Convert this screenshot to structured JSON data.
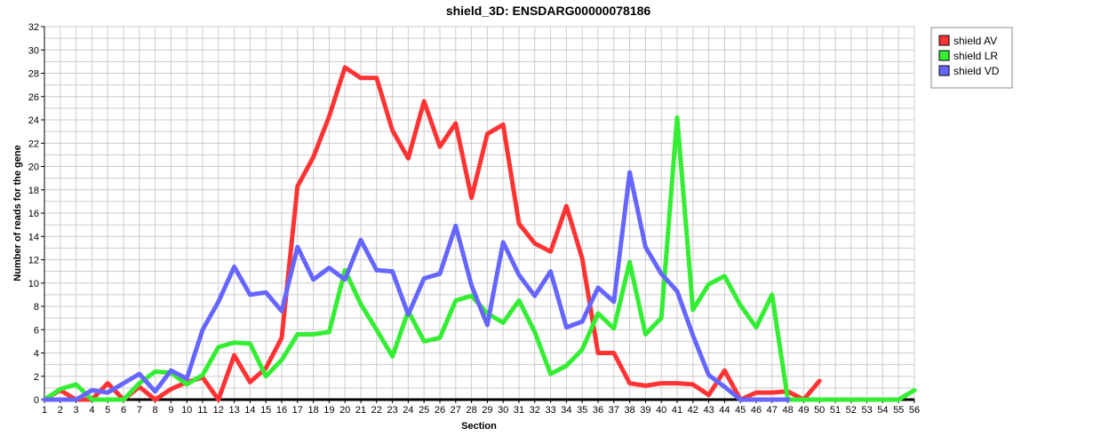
{
  "chart_data": {
    "type": "line",
    "title": "shield_3D: ENSDARG00000078186",
    "xlabel": "Section",
    "ylabel": "Number of reads for the gene",
    "xlim": [
      1,
      56
    ],
    "ylim": [
      0,
      32
    ],
    "y_tick_step": 2,
    "grid": true,
    "legend_position": "top-right-outside",
    "x": [
      1,
      2,
      3,
      4,
      5,
      6,
      7,
      8,
      9,
      10,
      11,
      12,
      13,
      14,
      15,
      16,
      17,
      18,
      19,
      20,
      21,
      22,
      23,
      24,
      25,
      26,
      27,
      28,
      29,
      30,
      31,
      32,
      33,
      34,
      35,
      36,
      37,
      38,
      39,
      40,
      41,
      42,
      43,
      44,
      45,
      46,
      47,
      48,
      49,
      50,
      51,
      52,
      53,
      54,
      55,
      56
    ],
    "series": [
      {
        "name": "shield AV",
        "color": "#ff3333",
        "values": [
          0,
          0.8,
          0,
          0,
          1.4,
          0,
          1.1,
          0,
          0.9,
          1.5,
          1.9,
          0,
          3.8,
          1.5,
          2.7,
          5.3,
          18.3,
          20.8,
          24.3,
          28.5,
          27.6,
          27.6,
          23.1,
          20.7,
          25.6,
          21.7,
          23.7,
          17.3,
          22.8,
          23.6,
          15.1,
          13.4,
          12.7,
          16.6,
          12.1,
          4.0,
          4.0,
          1.4,
          1.2,
          1.4,
          1.4,
          1.3,
          0.4,
          2.5,
          0,
          0.6,
          0.6,
          0.7,
          0,
          1.6,
          null,
          null,
          null,
          null,
          null,
          null
        ]
      },
      {
        "name": "shield LR",
        "color": "#33ee33",
        "values": [
          0,
          0.9,
          1.3,
          0,
          0,
          0,
          1.4,
          2.4,
          2.3,
          1.3,
          2.1,
          4.5,
          4.9,
          4.8,
          2.0,
          3.4,
          5.6,
          5.6,
          5.8,
          11.1,
          8.2,
          6.0,
          3.7,
          7.6,
          5.0,
          5.3,
          8.5,
          8.9,
          7.4,
          6.6,
          8.5,
          5.8,
          2.2,
          2.9,
          4.3,
          7.4,
          6.1,
          11.8,
          5.6,
          7.0,
          24.2,
          7.7,
          9.9,
          10.6,
          8.1,
          6.2,
          9.0,
          0,
          0,
          0,
          0,
          0,
          0,
          0,
          0,
          0.8
        ]
      },
      {
        "name": "shield VD",
        "color": "#6666ff",
        "values": [
          0,
          0,
          0,
          0.8,
          0.6,
          1.4,
          2.2,
          0.7,
          2.5,
          1.8,
          6.0,
          8.4,
          11.4,
          9.0,
          9.2,
          7.6,
          13.1,
          10.3,
          11.3,
          10.3,
          13.7,
          11.1,
          11.0,
          7.3,
          10.4,
          10.8,
          14.9,
          9.8,
          6.4,
          13.5,
          10.7,
          8.9,
          11.0,
          6.2,
          6.7,
          9.6,
          8.4,
          19.5,
          13.1,
          10.8,
          9.3,
          5.5,
          2.1,
          1.1,
          0,
          0,
          0,
          0,
          null,
          null,
          null,
          null,
          null,
          null,
          null,
          null
        ]
      }
    ]
  }
}
